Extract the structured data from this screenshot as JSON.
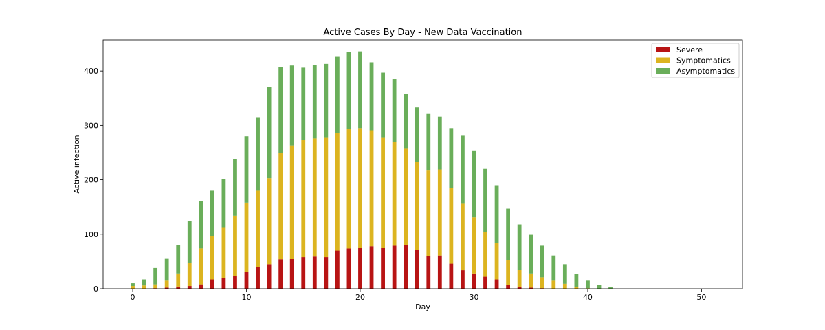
{
  "chart_data": {
    "type": "bar",
    "stacked": true,
    "title": "Active Cases By Day - New Data Vaccination",
    "xlabel": "Day",
    "ylabel": "Active infection",
    "xlim": [
      -2.6,
      53.6
    ],
    "ylim": [
      0,
      457
    ],
    "xticks": [
      0,
      10,
      20,
      30,
      40,
      50
    ],
    "yticks": [
      0,
      100,
      200,
      300,
      400
    ],
    "legend_position": "top-right",
    "grid": false,
    "x": [
      0,
      1,
      2,
      3,
      4,
      5,
      6,
      7,
      8,
      9,
      10,
      11,
      12,
      13,
      14,
      15,
      16,
      17,
      18,
      19,
      20,
      21,
      22,
      23,
      24,
      25,
      26,
      27,
      28,
      29,
      30,
      31,
      32,
      33,
      34,
      35,
      36,
      37,
      38,
      39,
      40,
      41,
      42,
      43,
      44,
      45,
      46,
      47,
      48,
      49,
      50,
      51
    ],
    "series": [
      {
        "name": "Severe",
        "color": "#b81414",
        "values": [
          0,
          0,
          1,
          2,
          4,
          5,
          8,
          17,
          19,
          24,
          31,
          40,
          45,
          54,
          55,
          58,
          59,
          58,
          70,
          74,
          75,
          78,
          75,
          79,
          80,
          71,
          60,
          61,
          46,
          34,
          28,
          22,
          17,
          7,
          3,
          2,
          1,
          0,
          0,
          0,
          0,
          0,
          0,
          0,
          0,
          0,
          0,
          0,
          0,
          0,
          0,
          0
        ]
      },
      {
        "name": "Symptomatics",
        "color": "#dcb420",
        "values": [
          5,
          6,
          7,
          14,
          24,
          43,
          66,
          80,
          94,
          110,
          127,
          140,
          158,
          195,
          208,
          215,
          217,
          219,
          216,
          220,
          220,
          213,
          202,
          191,
          177,
          162,
          157,
          158,
          139,
          122,
          103,
          82,
          67,
          46,
          32,
          26,
          20,
          16,
          9,
          3,
          1,
          0,
          0,
          0,
          0,
          0,
          0,
          0,
          0,
          0,
          0,
          0
        ]
      },
      {
        "name": "Asymptomatics",
        "color": "#6aae5a",
        "values": [
          5,
          11,
          30,
          40,
          52,
          76,
          87,
          83,
          88,
          104,
          122,
          135,
          167,
          158,
          147,
          133,
          135,
          136,
          140,
          141,
          141,
          125,
          120,
          115,
          101,
          100,
          104,
          97,
          110,
          125,
          123,
          116,
          106,
          94,
          83,
          71,
          58,
          45,
          36,
          24,
          15,
          7,
          3,
          0,
          0,
          0,
          0,
          0,
          0,
          0,
          0,
          0
        ]
      }
    ]
  }
}
